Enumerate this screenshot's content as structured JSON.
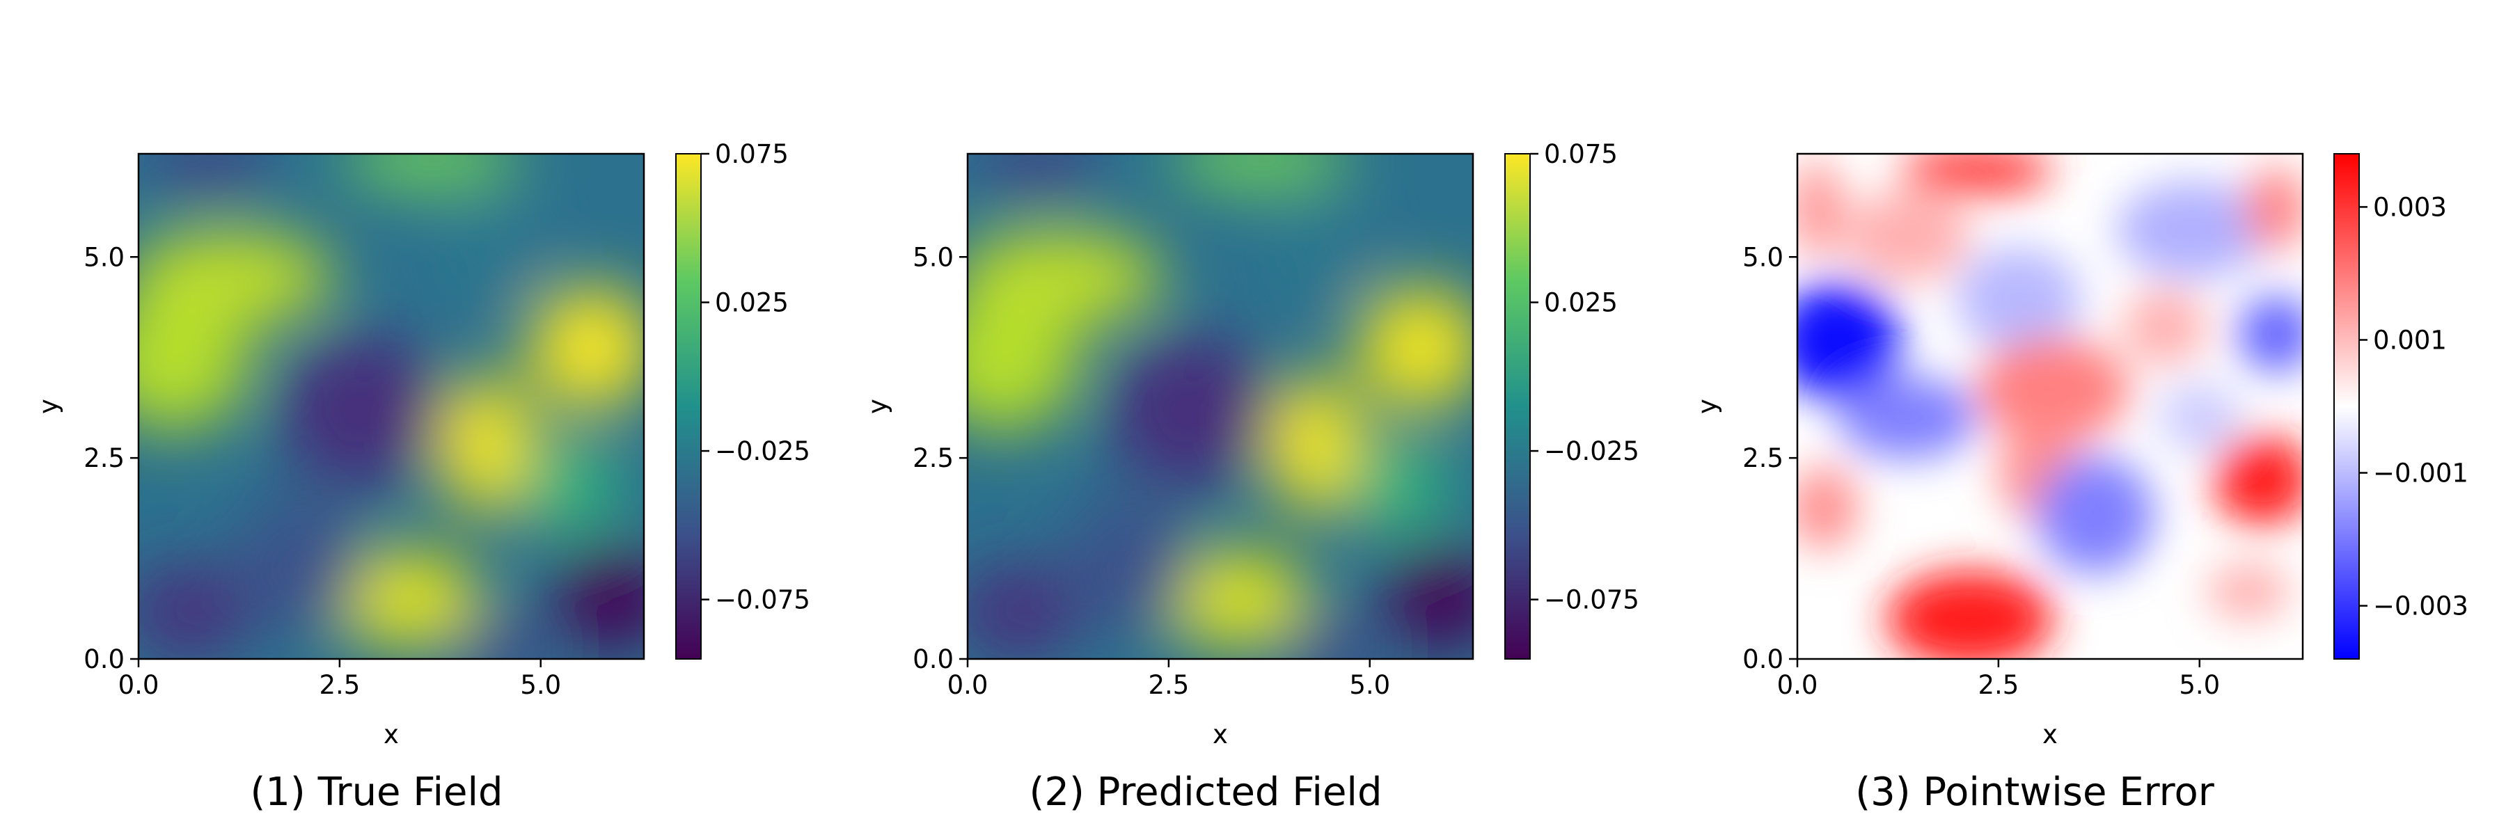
{
  "chart_data": [
    {
      "type": "heatmap",
      "caption": "(1) True Field",
      "xlabel": "x",
      "ylabel": "y",
      "xlim": [
        0,
        6.283
      ],
      "ylim": [
        0,
        6.283
      ],
      "xticks": [
        "0.0",
        "2.5",
        "5.0"
      ],
      "yticks": [
        "0.0",
        "2.5",
        "5.0"
      ],
      "colormap": "viridis",
      "colorbar": {
        "min": -0.095,
        "max": 0.075,
        "ticks": [
          "0.075",
          "0.025",
          "−0.025",
          "−0.075"
        ]
      }
    },
    {
      "type": "heatmap",
      "caption": "(2) Predicted Field",
      "xlabel": "x",
      "ylabel": "y",
      "xlim": [
        0,
        6.283
      ],
      "ylim": [
        0,
        6.283
      ],
      "xticks": [
        "0.0",
        "2.5",
        "5.0"
      ],
      "yticks": [
        "0.0",
        "2.5",
        "5.0"
      ],
      "colormap": "viridis",
      "colorbar": {
        "min": -0.095,
        "max": 0.075,
        "ticks": [
          "0.075",
          "0.025",
          "−0.025",
          "−0.075"
        ]
      }
    },
    {
      "type": "heatmap",
      "caption": "(3) Pointwise Error",
      "xlabel": "x",
      "ylabel": "y",
      "xlim": [
        0,
        6.283
      ],
      "ylim": [
        0,
        6.283
      ],
      "xticks": [
        "0.0",
        "2.5",
        "5.0"
      ],
      "yticks": [
        "0.0",
        "2.5",
        "5.0"
      ],
      "colormap": "bwr",
      "colorbar": {
        "min": -0.0038,
        "max": 0.0038,
        "ticks": [
          "0.003",
          "0.001",
          "−0.001",
          "−0.003"
        ]
      }
    }
  ],
  "colors": {
    "viridis": [
      "#440154",
      "#3b528b",
      "#21918c",
      "#5ec962",
      "#fde725"
    ],
    "bwr": [
      "#0000ff",
      "#ffffff",
      "#ff0000"
    ]
  }
}
